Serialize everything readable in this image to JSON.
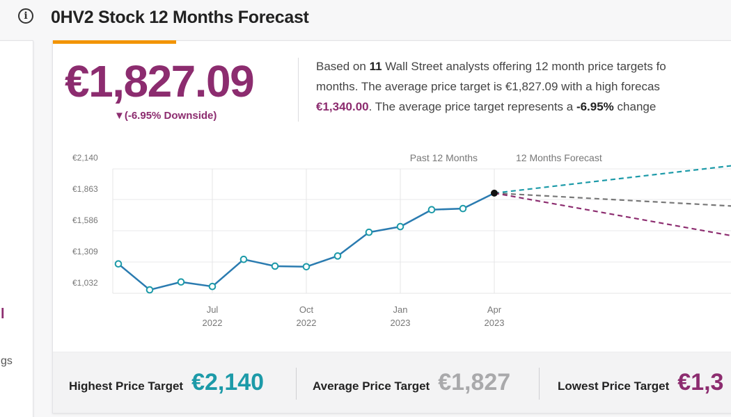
{
  "header": {
    "title": "0HV2 Stock 12 Months Forecast",
    "info_icon": "info-circle-icon"
  },
  "left_panel": {
    "fragment_1": "l",
    "fragment_2": "gs"
  },
  "summary": {
    "price": "€1,827.09",
    "downside": "▼(-6.95% Downside)",
    "text_1": "Based on ",
    "analyst_count": "11",
    "text_2": " Wall Street analysts offering 12 month price targets fo",
    "text_3": "months. The average price target is €1,827.09 with a high forecas",
    "low_value": "€1,340.00",
    "text_4": ". The average price target represents a ",
    "change": "-6.95%",
    "text_5": " change"
  },
  "targets": {
    "highest_label": "Highest Price Target",
    "highest_value": "€2,140",
    "average_label": "Average Price Target",
    "average_value": "€1,827",
    "lowest_label": "Lowest Price Target",
    "lowest_value": "€1,3"
  },
  "chart_data": {
    "type": "line",
    "y_ticks": [
      "€2,140",
      "€1,863",
      "€1,586",
      "€1,309",
      "€1,032"
    ],
    "y_tick_values": [
      2140,
      1863,
      1586,
      1309,
      1032
    ],
    "ylim": [
      1032,
      2140
    ],
    "x_ticks": [
      {
        "label": [
          "Jul",
          "2022"
        ],
        "index": 3
      },
      {
        "label": [
          "Oct",
          "2022"
        ],
        "index": 6
      },
      {
        "label": [
          "Jan",
          "2023"
        ],
        "index": 9
      },
      {
        "label": [
          "Apr",
          "2023"
        ],
        "index": 12
      }
    ],
    "past_label": "Past 12 Months",
    "forecast_label": "12 Months Forecast",
    "series": [
      {
        "values": [
          1200,
          970,
          1040,
          1000,
          1240,
          1180,
          1175,
          1270,
          1480,
          1530,
          1680,
          1690,
          1827
        ]
      }
    ],
    "forecast": {
      "start": 1827,
      "high": 2140,
      "average": 1827,
      "low": 1340
    },
    "colors": {
      "line": "#2a7bb0",
      "marker": "#1c9aa8",
      "high": "#1c9aa8",
      "average": "#777777",
      "low": "#8c2c6f"
    }
  }
}
